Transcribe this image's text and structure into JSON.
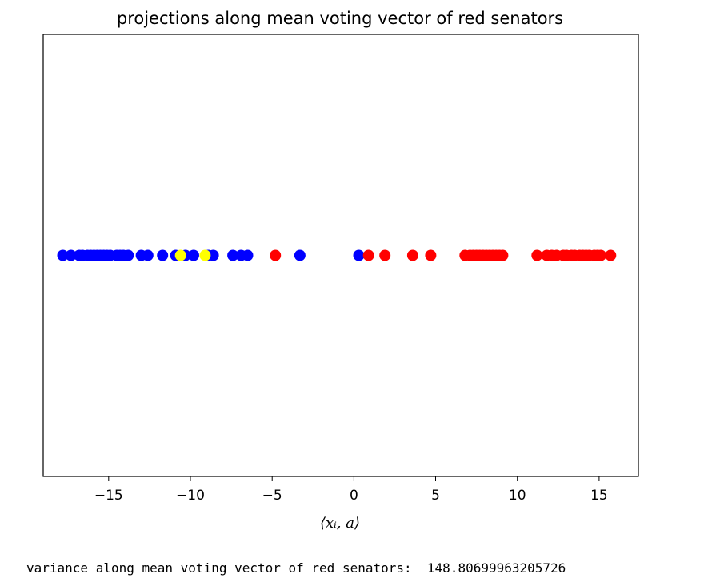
{
  "output": {
    "text": "variance along mean voting vector of red senators:  148.80699963205726"
  },
  "colors": {
    "blue": "#0000ff",
    "red": "#ff0000",
    "yellow": "#ffff00"
  },
  "chart_data": {
    "type": "scatter",
    "title": "projections along mean voting vector of red senators",
    "xlabel": "⟨xᵢ, a⟩",
    "ylabel": "",
    "xlim": [
      -19.0,
      17.4
    ],
    "ylim": [
      -1,
      1
    ],
    "y_ticks_visible": false,
    "grid": false,
    "xticks": [
      -15,
      -10,
      -5,
      0,
      5,
      10,
      15
    ],
    "xtick_labels": [
      "−15",
      "−10",
      "−5",
      "0",
      "5",
      "10",
      "15"
    ],
    "series": [
      {
        "color": "blue",
        "x": [
          -17.8,
          -17.3,
          -16.8,
          -16.6,
          -16.3,
          -16.1,
          -15.9,
          -15.7,
          -15.5,
          -15.3,
          -15.1,
          -14.9,
          -14.5,
          -14.3,
          -14.1,
          -13.8,
          -13.0,
          -12.6,
          -11.7,
          -10.9,
          -10.3,
          -9.8,
          -8.9,
          -8.6,
          -7.4,
          -6.9,
          -6.5,
          -3.3,
          0.3
        ],
        "y": [
          0,
          0,
          0,
          0,
          0,
          0,
          0,
          0,
          0,
          0,
          0,
          0,
          0,
          0,
          0,
          0,
          0,
          0,
          0,
          0,
          0,
          0,
          0,
          0,
          0,
          0,
          0,
          0,
          0
        ]
      },
      {
        "color": "yellow",
        "x": [
          -10.6,
          -9.1
        ],
        "y": [
          0,
          0
        ]
      },
      {
        "color": "red",
        "x": [
          -4.8,
          0.9,
          1.9,
          3.6,
          4.7,
          6.8,
          7.1,
          7.3,
          7.5,
          7.7,
          7.9,
          8.1,
          8.3,
          8.5,
          8.7,
          8.9,
          9.1,
          11.2,
          11.8,
          12.1,
          12.4,
          12.8,
          13.0,
          13.3,
          13.5,
          13.8,
          14.0,
          14.2,
          14.4,
          14.7,
          14.9,
          15.1,
          15.7
        ],
        "y": [
          0,
          0,
          0,
          0,
          0,
          0,
          0,
          0,
          0,
          0,
          0,
          0,
          0,
          0,
          0,
          0,
          0,
          0,
          0,
          0,
          0,
          0,
          0,
          0,
          0,
          0,
          0,
          0,
          0,
          0,
          0,
          0,
          0
        ]
      }
    ]
  }
}
